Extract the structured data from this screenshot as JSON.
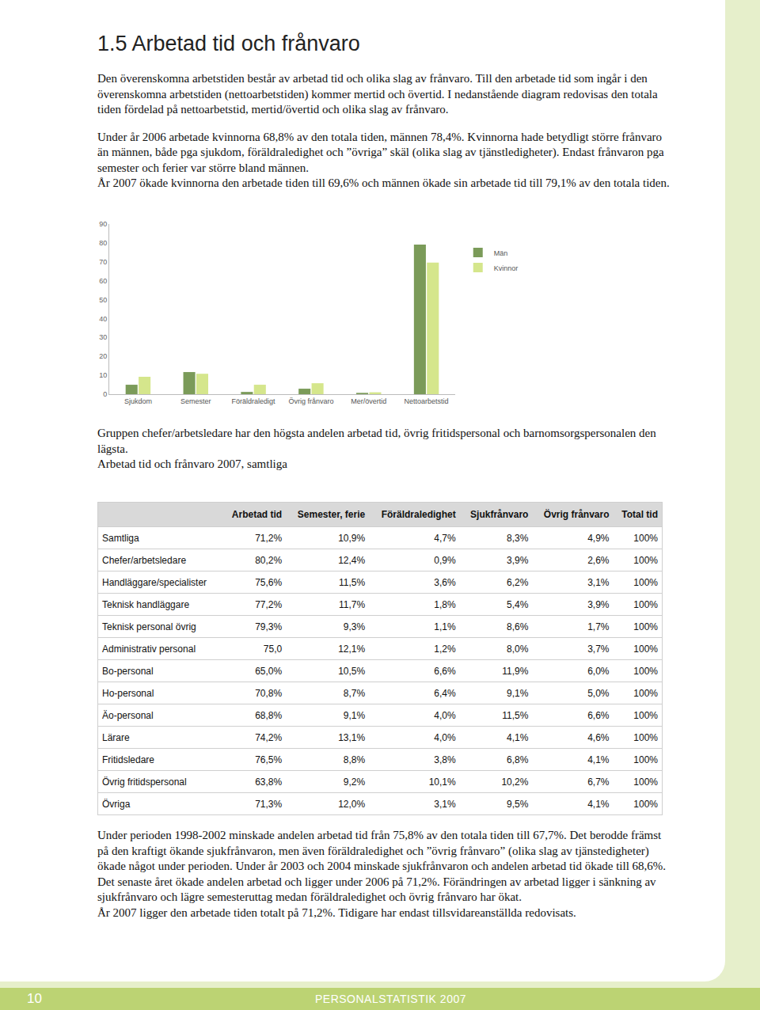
{
  "heading": "1.5 Arbetad tid och frånvaro",
  "intro": [
    "Den överenskomna arbetstiden består av arbetad tid och olika slag av frånvaro. Till den arbetade tid som ingår i den överenskomna arbetstiden (nettoarbetstiden) kommer mertid och övertid. I nedanstående diagram redovisas den totala tiden fördelad på nettoarbetstid, mertid/övertid och olika slag av frånvaro.",
    "Under år 2006 arbetade kvinnorna 68,8% av den totala tiden, männen 78,4%. Kvinnorna hade betydligt större frånvaro än männen, både pga sjukdom, föräldraledighet och ”övriga” skäl (olika slag av tjänstledigheter). Endast frånvaron pga semester och ferier var större bland männen.",
    "År 2007 ökade kvinnorna den arbetade tiden till 69,6% och männen ökade sin arbetade tid till 79,1% av den totala tiden."
  ],
  "chart_data": {
    "type": "bar",
    "categories": [
      "Sjukdom",
      "Semester",
      "Föräldraledigt",
      "Övrig frånvaro",
      "Mer/övertid",
      "Nettoarbetstid"
    ],
    "series": [
      {
        "name": "Män",
        "color": "#7b9b59",
        "values": [
          5.0,
          11.7,
          1.2,
          2.9,
          0.7,
          79.1
        ]
      },
      {
        "name": "Kvinnor",
        "color": "#d5e68c",
        "values": [
          9.2,
          10.8,
          5.0,
          5.8,
          1.0,
          69.6
        ]
      }
    ],
    "ylim": [
      0,
      90
    ],
    "yticks": [
      0,
      10,
      20,
      30,
      40,
      50,
      60,
      70,
      80,
      90
    ],
    "grid": false,
    "legend": "top right"
  },
  "after_chart": [
    "Gruppen chefer/arbetsledare har den högsta andelen arbetad tid, övrig fritidspersonal och barnomsorgspersonalen den lägsta.",
    "Arbetad tid och frånvaro 2007, samtliga"
  ],
  "table": {
    "header": [
      "Arbetad tid",
      "Semester, ferie",
      "Föräldraledighet",
      "Sjukfrånvaro",
      "Övrig frånvaro",
      "Total tid"
    ],
    "rows": [
      [
        "Samtliga",
        "71,2%",
        "10,9%",
        "4,7%",
        "8,3%",
        "4,9%",
        "100%"
      ],
      [
        "Chefer/arbetsledare",
        "80,2%",
        "12,4%",
        "0,9%",
        "3,9%",
        "2,6%",
        "100%"
      ],
      [
        "Handläggare/specialister",
        "75,6%",
        "11,5%",
        "3,6%",
        "6,2%",
        "3,1%",
        "100%"
      ],
      [
        "Teknisk handläggare",
        "77,2%",
        "11,7%",
        "1,8%",
        "5,4%",
        "3,9%",
        "100%"
      ],
      [
        "Teknisk personal övrig",
        "79,3%",
        "9,3%",
        "1,1%",
        "8,6%",
        "1,7%",
        "100%"
      ],
      [
        "Administrativ personal",
        "75,0",
        "12,1%",
        "1,2%",
        "8,0%",
        "3,7%",
        "100%"
      ],
      [
        "Bo-personal",
        "65,0%",
        "10,5%",
        "6,6%",
        "11,9%",
        "6,0%",
        "100%"
      ],
      [
        "Ho-personal",
        "70,8%",
        "8,7%",
        "6,4%",
        "9,1%",
        "5,0%",
        "100%"
      ],
      [
        "Äo-personal",
        "68,8%",
        "9,1%",
        "4,0%",
        "11,5%",
        "6,6%",
        "100%"
      ],
      [
        "Lärare",
        "74,2%",
        "13,1%",
        "4,0%",
        "4,1%",
        "4,6%",
        "100%"
      ],
      [
        "Fritidsledare",
        "76,5%",
        "8,8%",
        "3,8%",
        "6,8%",
        "4,1%",
        "100%"
      ],
      [
        "Övrig fritidspersonal",
        "63,8%",
        "9,2%",
        "10,1%",
        "10,2%",
        "6,7%",
        "100%"
      ],
      [
        "Övriga",
        "71,3%",
        "12,0%",
        "3,1%",
        "9,5%",
        "4,1%",
        "100%"
      ]
    ]
  },
  "closing": [
    "Under perioden 1998-2002 minskade andelen arbetad tid från 75,8% av den totala tiden till 67,7%. Det berodde främst på den kraftigt ökande sjukfrånvaron, men även föräldraledighet och ”övrig frånvaro” (olika slag av tjänstedigheter) ökade något under perioden. Under år 2003 och 2004 minskade sjukfrånvaron och andelen arbetad tid ökade till 68,6%. Det senaste året ökade andelen arbetad och ligger under 2006 på 71,2%. Förändringen av arbetad ligger i sänkning av sjukfrånvaro och lägre semesteruttag medan föräldraledighet och övrig frånvaro har ökat.",
    "År 2007 ligger den arbetade tiden totalt på 71,2%. Tidigare har endast tillsvidareanställda redovisats."
  ],
  "footer": {
    "page": "10",
    "publication": "PERSONALSTATISTIK 2007"
  }
}
